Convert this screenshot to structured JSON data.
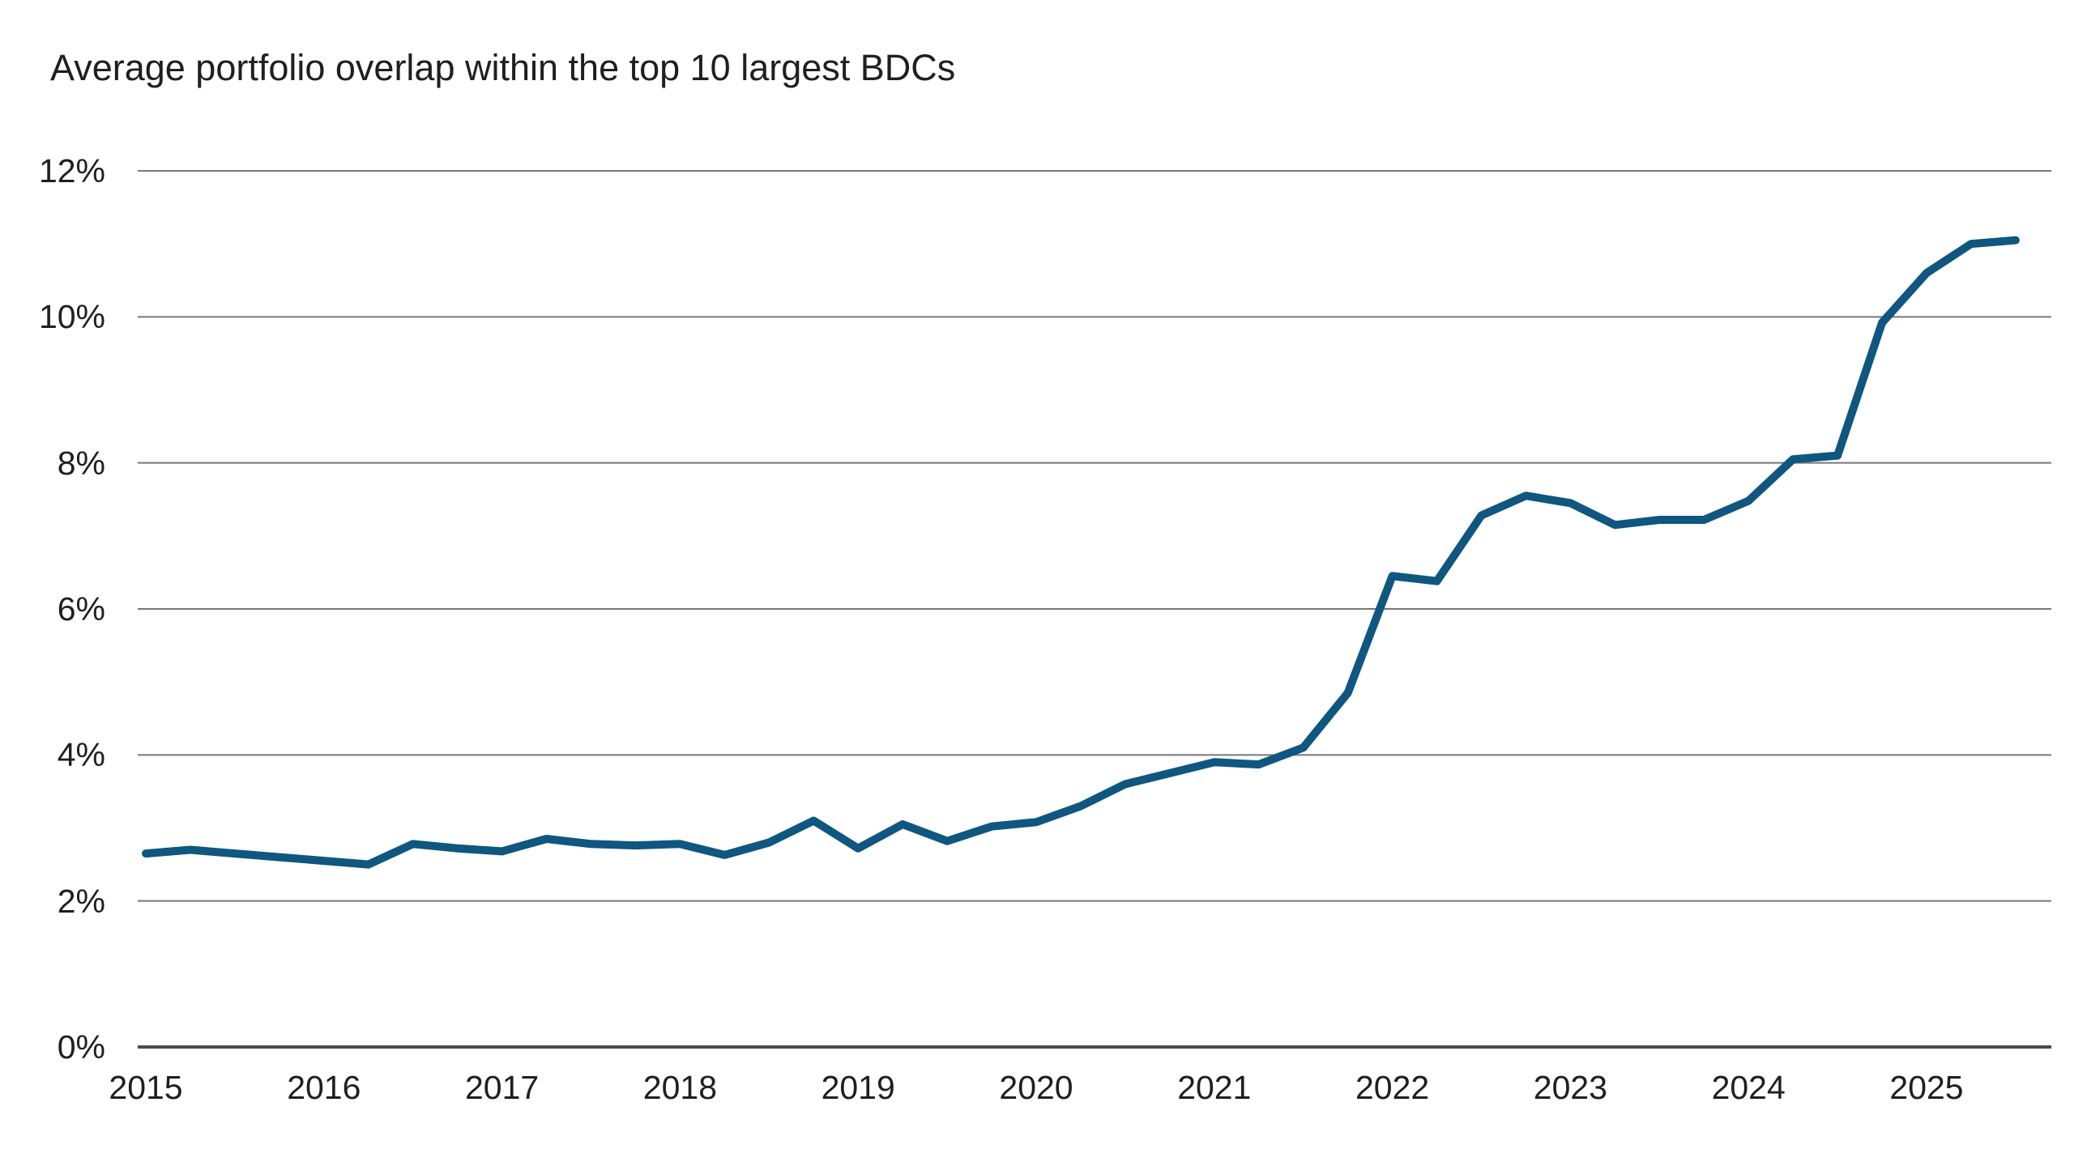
{
  "title": "Average portfolio overlap within the top 10 largest BDCs",
  "colors": {
    "line": "#0F5680",
    "gridline": "#787878",
    "baseline_axis": "#4a4a4a",
    "text": "#1f1f1f",
    "background": "#ffffff"
  },
  "chart_data": {
    "type": "line",
    "title": "Average portfolio overlap within the top 10 largest BDCs",
    "xlabel": "",
    "ylabel": "",
    "ylim": [
      0,
      12
    ],
    "grid": "horizontal",
    "legend_position": "none",
    "series_name": "Average portfolio overlap within the top 10 largest BDCs",
    "x_unit": "quarterly",
    "x_start": "2015 Q1",
    "x_end": "2025 Q3",
    "categories": [
      "2015 Q1",
      "2015 Q2",
      "2015 Q3",
      "2015 Q4",
      "2016 Q1",
      "2016 Q2",
      "2016 Q3",
      "2016 Q4",
      "2017 Q1",
      "2017 Q2",
      "2017 Q3",
      "2017 Q4",
      "2018 Q1",
      "2018 Q2",
      "2018 Q3",
      "2018 Q4",
      "2019 Q1",
      "2019 Q2",
      "2019 Q3",
      "2019 Q4",
      "2020 Q1",
      "2020 Q2",
      "2020 Q3",
      "2020 Q4",
      "2021 Q1",
      "2021 Q2",
      "2021 Q3",
      "2021 Q4",
      "2022 Q1",
      "2022 Q2",
      "2022 Q3",
      "2022 Q4",
      "2023 Q1",
      "2023 Q2",
      "2023 Q3",
      "2023 Q4",
      "2024 Q1",
      "2024 Q2",
      "2024 Q3",
      "2024 Q4",
      "2025 Q1",
      "2025 Q2",
      "2025 Q3"
    ],
    "values": [
      2.65,
      2.7,
      2.65,
      2.6,
      2.55,
      2.5,
      2.78,
      2.72,
      2.68,
      2.85,
      2.78,
      2.76,
      2.78,
      2.63,
      2.8,
      3.1,
      2.72,
      3.05,
      2.82,
      3.02,
      3.08,
      3.3,
      3.6,
      3.75,
      3.9,
      3.87,
      4.1,
      4.85,
      6.45,
      6.38,
      7.28,
      7.55,
      7.45,
      7.15,
      7.22,
      7.22,
      7.48,
      8.05,
      8.1,
      9.92,
      10.6,
      11.0,
      11.05
    ],
    "y_ticks": [
      {
        "value": 0,
        "label": "0%"
      },
      {
        "value": 2,
        "label": "2%"
      },
      {
        "value": 4,
        "label": "4%"
      },
      {
        "value": 6,
        "label": "6%"
      },
      {
        "value": 8,
        "label": "8%"
      },
      {
        "value": 10,
        "label": "10%"
      },
      {
        "value": 12,
        "label": "12%"
      }
    ],
    "x_ticks": [
      {
        "year_offset": 0,
        "label": "2015"
      },
      {
        "year_offset": 1,
        "label": "2016"
      },
      {
        "year_offset": 2,
        "label": "2017"
      },
      {
        "year_offset": 3,
        "label": "2018"
      },
      {
        "year_offset": 4,
        "label": "2019"
      },
      {
        "year_offset": 5,
        "label": "2020"
      },
      {
        "year_offset": 6,
        "label": "2021"
      },
      {
        "year_offset": 7,
        "label": "2022"
      },
      {
        "year_offset": 8,
        "label": "2023"
      },
      {
        "year_offset": 9,
        "label": "2024"
      },
      {
        "year_offset": 10,
        "label": "2025"
      }
    ]
  }
}
